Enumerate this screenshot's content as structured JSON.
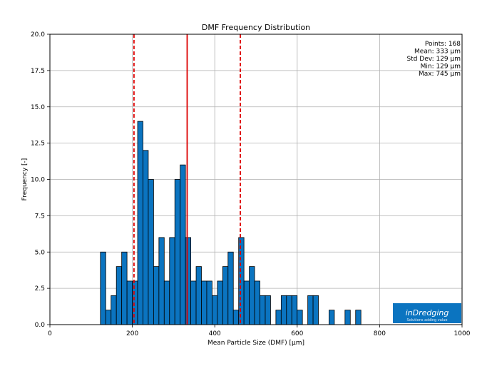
{
  "chart_data": {
    "type": "bar",
    "title": "DMF Frequency Distribution",
    "xlabel": "Mean Particle Size (DMF) [μm]",
    "ylabel": "Frequency [-]",
    "xlim": [
      0,
      1000
    ],
    "ylim": [
      0,
      20
    ],
    "xticks": [
      "0",
      "200",
      "400",
      "600",
      "800",
      "1000"
    ],
    "yticks": [
      "0.0",
      "2.5",
      "5.0",
      "7.5",
      "10.0",
      "12.5",
      "15.0",
      "17.5",
      "20.0"
    ],
    "grid": true,
    "bin_width": 12.9,
    "bins": [
      {
        "x": 129.0,
        "y": 5
      },
      {
        "x": 141.9,
        "y": 1
      },
      {
        "x": 154.8,
        "y": 2
      },
      {
        "x": 167.7,
        "y": 4
      },
      {
        "x": 180.6,
        "y": 5
      },
      {
        "x": 193.5,
        "y": 3
      },
      {
        "x": 206.4,
        "y": 3
      },
      {
        "x": 219.3,
        "y": 14
      },
      {
        "x": 232.2,
        "y": 12
      },
      {
        "x": 245.1,
        "y": 10
      },
      {
        "x": 258.0,
        "y": 4
      },
      {
        "x": 270.9,
        "y": 6
      },
      {
        "x": 283.8,
        "y": 3
      },
      {
        "x": 296.7,
        "y": 6
      },
      {
        "x": 309.6,
        "y": 10
      },
      {
        "x": 322.5,
        "y": 11
      },
      {
        "x": 335.4,
        "y": 6
      },
      {
        "x": 348.3,
        "y": 3
      },
      {
        "x": 361.2,
        "y": 4
      },
      {
        "x": 374.1,
        "y": 3
      },
      {
        "x": 387.0,
        "y": 3
      },
      {
        "x": 399.9,
        "y": 2
      },
      {
        "x": 412.8,
        "y": 3
      },
      {
        "x": 425.7,
        "y": 4
      },
      {
        "x": 438.6,
        "y": 5
      },
      {
        "x": 451.5,
        "y": 1
      },
      {
        "x": 464.4,
        "y": 6
      },
      {
        "x": 477.3,
        "y": 3
      },
      {
        "x": 490.2,
        "y": 4
      },
      {
        "x": 503.1,
        "y": 3
      },
      {
        "x": 516.0,
        "y": 2
      },
      {
        "x": 528.9,
        "y": 2
      },
      {
        "x": 554.7,
        "y": 1
      },
      {
        "x": 567.6,
        "y": 2
      },
      {
        "x": 580.5,
        "y": 2
      },
      {
        "x": 593.4,
        "y": 2
      },
      {
        "x": 606.3,
        "y": 1
      },
      {
        "x": 632.1,
        "y": 2
      },
      {
        "x": 645.0,
        "y": 2
      },
      {
        "x": 683.7,
        "y": 1
      },
      {
        "x": 722.4,
        "y": 1
      },
      {
        "x": 748.2,
        "y": 1
      }
    ],
    "vlines": [
      {
        "x": 333,
        "style": "solid",
        "color": "#dd0000"
      },
      {
        "x": 204,
        "style": "dashed",
        "color": "#dd0000"
      },
      {
        "x": 462,
        "style": "dashed",
        "color": "#dd0000"
      }
    ],
    "bar_color": "#0b74c0",
    "stats": [
      "Points: 168",
      "Mean: 333 μm",
      "Std Dev: 129 μm",
      "Min: 129 μm",
      "Max: 745 μm"
    ]
  },
  "logo": {
    "text": "inDredging",
    "tagline": "Solutions adding value",
    "color": "#0b74c0"
  }
}
